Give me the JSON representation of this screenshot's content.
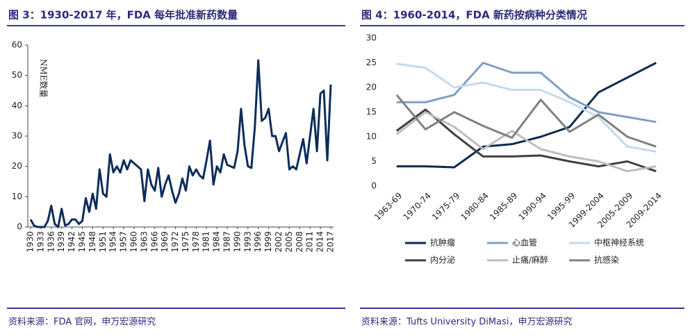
{
  "chart_data": [
    {
      "type": "line",
      "title": "图 3：1930-2017 年，FDA 每年批准新药数量",
      "ylabel": "NME数量",
      "source": "资料来源：FDA 官网，申万宏源研究",
      "x": [
        1930,
        1931,
        1932,
        1933,
        1934,
        1935,
        1936,
        1937,
        1938,
        1939,
        1940,
        1941,
        1942,
        1943,
        1944,
        1945,
        1946,
        1947,
        1948,
        1949,
        1950,
        1951,
        1952,
        1953,
        1954,
        1955,
        1956,
        1957,
        1958,
        1959,
        1960,
        1961,
        1962,
        1963,
        1964,
        1965,
        1966,
        1967,
        1968,
        1969,
        1970,
        1971,
        1972,
        1973,
        1974,
        1975,
        1976,
        1977,
        1978,
        1979,
        1980,
        1981,
        1982,
        1983,
        1984,
        1985,
        1986,
        1987,
        1988,
        1989,
        1990,
        1991,
        1992,
        1993,
        1994,
        1995,
        1996,
        1997,
        1998,
        1999,
        2000,
        2001,
        2002,
        2003,
        2004,
        2005,
        2006,
        2007,
        2008,
        2009,
        2010,
        2011,
        2012,
        2013,
        2014,
        2015,
        2016,
        2017
      ],
      "values": [
        2.5,
        0.5,
        0,
        0,
        0,
        2,
        7,
        1,
        0,
        6,
        0.5,
        1,
        2.5,
        2.5,
        1,
        2,
        9.5,
        5,
        11,
        6,
        19,
        11,
        10,
        24,
        18,
        20,
        18,
        22,
        19,
        22,
        21,
        20,
        19,
        8.5,
        19,
        14,
        12,
        19.5,
        10,
        14,
        17,
        12,
        8,
        11,
        16,
        12,
        20,
        17,
        19,
        17,
        16,
        22,
        28.5,
        14,
        20,
        18,
        24,
        20.5,
        20,
        19.5,
        25,
        39,
        27,
        20,
        19.5,
        33,
        55,
        35,
        36,
        39,
        30,
        30,
        25,
        28,
        31,
        19,
        20,
        19,
        24,
        29,
        21,
        30,
        39,
        25,
        44,
        45,
        22,
        47
      ],
      "color": "#0c2d5a",
      "xlim": [
        1930,
        2017
      ],
      "xticks": [
        1930,
        1933,
        1936,
        1939,
        1942,
        1945,
        1948,
        1951,
        1954,
        1957,
        1960,
        1963,
        1966,
        1969,
        1972,
        1975,
        1978,
        1981,
        1984,
        1987,
        1990,
        1993,
        1996,
        1999,
        2002,
        2005,
        2008,
        2011,
        2014,
        2017
      ],
      "ylim": [
        0,
        60
      ],
      "yticks": [
        0,
        10,
        20,
        30,
        40,
        50,
        60
      ]
    },
    {
      "type": "line",
      "title": "图 4：1960-2014，FDA 新药按病种分类情况",
      "source": "资料来源：Tufts University DiMasi，申万宏源研究",
      "categories": [
        "1963-69",
        "1970-74",
        "1975-79",
        "1980-84",
        "1985-89",
        "1990-94",
        "1995-99",
        "1999-2004",
        "2005-2009",
        "2009-2014"
      ],
      "series": [
        {
          "name": "抗肿瘤",
          "color": "#0d2b4e",
          "values": [
            4,
            4,
            3.8,
            8,
            8.5,
            10,
            12,
            19,
            22,
            25
          ]
        },
        {
          "name": "心血管",
          "color": "#7f9fc5",
          "values": [
            17,
            17,
            18.5,
            25,
            23,
            23,
            18,
            15,
            14,
            13
          ]
        },
        {
          "name": "中枢神经系统",
          "color": "#c5d9ee",
          "values": [
            24.8,
            24,
            20,
            21,
            19.5,
            19.5,
            17,
            14,
            8,
            7
          ]
        },
        {
          "name": "内分泌",
          "color": "#404040",
          "values": [
            11.2,
            15.5,
            10.5,
            6,
            6,
            6.2,
            5,
            4,
            5,
            3
          ]
        },
        {
          "name": "止痛/麻醉",
          "color": "#bdbdbd",
          "values": [
            10.5,
            15,
            12,
            7.5,
            11.2,
            7.5,
            6,
            5,
            3,
            4
          ]
        },
        {
          "name": "抗感染",
          "color": "#808080",
          "values": [
            18.5,
            11.5,
            15,
            12.2,
            9.8,
            17.5,
            11,
            14.5,
            10,
            8
          ]
        }
      ],
      "ylim": [
        0,
        30
      ],
      "yticks": [
        0,
        5,
        10,
        15,
        20,
        25,
        30
      ]
    }
  ]
}
